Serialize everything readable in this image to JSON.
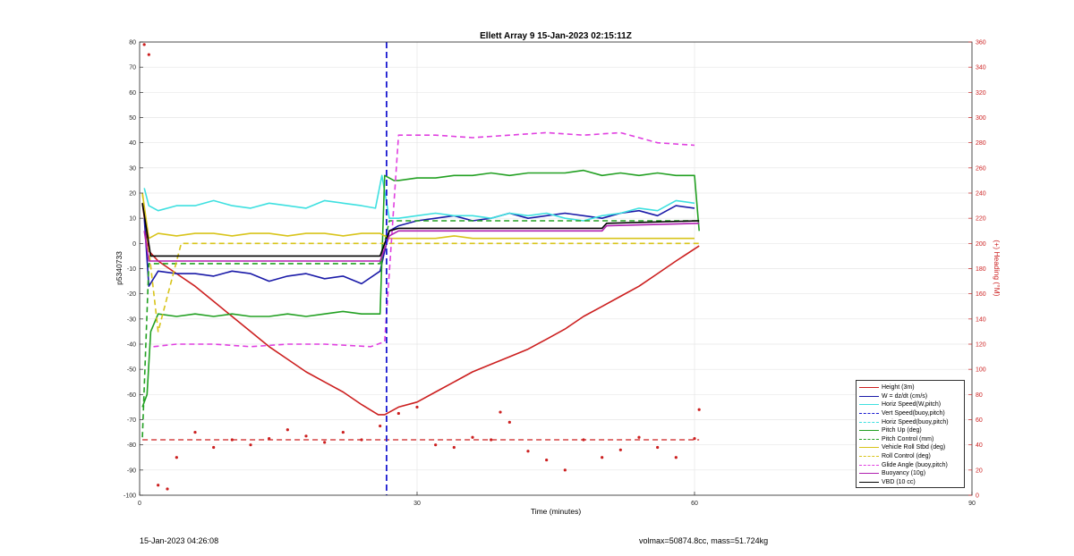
{
  "title": "Ellett Array 9 15-Jan-2023 02:15:11Z",
  "footer": {
    "left": "15-Jan-2023 04:26:08",
    "right": "volmax=50874.8cc, mass=51.724kg"
  },
  "colors": {
    "height": "#cc1f1f",
    "w": "#1a1aa8",
    "horiz": "#3ee0e0",
    "vert": "#1a1ad0",
    "pitch": "#22a022",
    "roll": "#d8c41a",
    "glide": "#e040e0",
    "buoyancy": "#b020b0",
    "vbd": "#000000"
  },
  "chart_data": {
    "type": "line",
    "title": "Ellett Array 9 15-Jan-2023 02:15:11Z",
    "xlabel": "Time (minutes)",
    "ylabel": "p5340733",
    "y2label": "(+) Heading (°M)",
    "xlim": [
      0,
      90
    ],
    "ylim": [
      -100,
      80
    ],
    "y2lim": [
      0,
      360
    ],
    "xticks": [
      "0",
      "30",
      "60",
      "90"
    ],
    "yticks": [
      "80",
      "70",
      "60",
      "50",
      "40",
      "30",
      "20",
      "10",
      "0",
      "-10",
      "-20",
      "-30",
      "-40",
      "-50",
      "-60",
      "-70",
      "-80",
      "-90",
      "-100"
    ],
    "y2ticks": [
      "360",
      "340",
      "320",
      "300",
      "280",
      "260",
      "240",
      "220",
      "200",
      "180",
      "160",
      "140",
      "120",
      "100",
      "80",
      "60",
      "40",
      "20",
      "0"
    ],
    "grid": true,
    "legend_position": "bottom-right",
    "vertical_line_x": 26.7,
    "series": [
      {
        "name": "Height (3m)",
        "style": "solid",
        "color": "#cc1f1f",
        "x": [
          0.3,
          1,
          2,
          4,
          6,
          8,
          10,
          12,
          14,
          16,
          18,
          20,
          22,
          24,
          25.8,
          26.5,
          28,
          30,
          32,
          34,
          36,
          38,
          40,
          42,
          44,
          46,
          48,
          50,
          52,
          54,
          56,
          58,
          60.5
        ],
        "y": [
          16,
          -3,
          -7,
          -12,
          -17,
          -23,
          -29,
          -35,
          -41,
          -46,
          -51,
          -55,
          -59,
          -64,
          -68,
          -68,
          -65,
          -63,
          -59,
          -55,
          -51,
          -48,
          -45,
          -42,
          -38,
          -34,
          -29,
          -25,
          -21,
          -17,
          -12,
          -7,
          -1
        ]
      },
      {
        "name": "W = dz/dt (cm/s)",
        "style": "solid",
        "color": "#1a1aa8",
        "x": [
          0.5,
          1,
          2,
          4,
          6,
          8,
          10,
          12,
          14,
          16,
          18,
          20,
          22,
          24,
          26,
          27,
          28,
          30,
          32,
          34,
          36,
          38,
          40,
          42,
          44,
          46,
          48,
          50,
          52,
          54,
          56,
          58,
          60
        ],
        "y": [
          10,
          -17,
          -11,
          -12,
          -12,
          -13,
          -11,
          -12,
          -15,
          -13,
          -12,
          -14,
          -13,
          -16,
          -11,
          5,
          7,
          9,
          10,
          11,
          9,
          10,
          12,
          10,
          11,
          12,
          11,
          10,
          12,
          13,
          11,
          15,
          14
        ]
      },
      {
        "name": "Horiz Speed(W,pitch)",
        "style": "solid",
        "color": "#3ee0e0",
        "x": [
          0.5,
          1,
          2,
          4,
          6,
          8,
          10,
          12,
          14,
          16,
          18,
          20,
          22,
          24,
          25.5,
          26.2,
          27,
          28,
          30,
          32,
          34,
          36,
          38,
          40,
          42,
          44,
          46,
          48,
          50,
          52,
          54,
          56,
          58,
          60
        ],
        "y": [
          22,
          15,
          13,
          15,
          15,
          17,
          15,
          14,
          16,
          15,
          14,
          17,
          16,
          15,
          14,
          27,
          10,
          10,
          11,
          12,
          11,
          11,
          10,
          12,
          11,
          12,
          10,
          9,
          11,
          12,
          14,
          13,
          17,
          16
        ]
      },
      {
        "name": "Vert Speed(buoy,pitch)",
        "style": "dashed",
        "color": "#1a1ad0",
        "x": [],
        "y": []
      },
      {
        "name": "Horiz Speed(buoy,pitch)",
        "style": "dashed",
        "color": "#3ee0e0",
        "x": [],
        "y": []
      },
      {
        "name": "Pitch Up (deg)",
        "style": "solid",
        "color": "#22a022",
        "x": [
          0.3,
          0.8,
          1.2,
          2,
          4,
          6,
          8,
          10,
          12,
          14,
          16,
          18,
          20,
          22,
          24,
          26,
          26.5,
          27.5,
          28,
          30,
          32,
          34,
          36,
          38,
          40,
          42,
          44,
          46,
          48,
          50,
          52,
          54,
          56,
          58,
          60,
          60.5
        ],
        "y": [
          -65,
          -60,
          -35,
          -28,
          -29,
          -28,
          -29,
          -28,
          -29,
          -29,
          -28,
          -29,
          -28,
          -27,
          -28,
          -28,
          27,
          25,
          25,
          26,
          26,
          27,
          27,
          28,
          27,
          28,
          28,
          28,
          29,
          27,
          28,
          27,
          28,
          27,
          27,
          5
        ]
      },
      {
        "name": "Pitch Control (mm)",
        "style": "dashed",
        "color": "#22a022",
        "x": [
          0.3,
          1,
          26,
          27,
          60.5
        ],
        "y": [
          -77,
          -8,
          -8,
          9,
          9
        ]
      },
      {
        "name": "Vehicle Roll Stbd (deg)",
        "style": "solid",
        "color": "#d8c41a",
        "x": [
          0.3,
          1,
          2,
          4,
          6,
          8,
          10,
          12,
          14,
          16,
          18,
          20,
          22,
          24,
          26,
          27,
          28,
          30,
          32,
          34,
          36,
          38,
          40,
          42,
          44,
          46,
          48,
          50,
          52,
          54,
          56,
          58,
          60
        ],
        "y": [
          20,
          2,
          4,
          3,
          4,
          4,
          3,
          4,
          4,
          3,
          4,
          4,
          3,
          4,
          4,
          2,
          2,
          2,
          2,
          3,
          2,
          2,
          2,
          2,
          2,
          2,
          2,
          2,
          2,
          2,
          2,
          2,
          2
        ]
      },
      {
        "name": "Roll Control (deg)",
        "style": "dashed",
        "color": "#d8c41a",
        "x": [
          0.3,
          2,
          4.5,
          20.5,
          21.5,
          26,
          27,
          60.5
        ],
        "y": [
          20,
          -35,
          0,
          0,
          0,
          0,
          0,
          0
        ]
      },
      {
        "name": "Glide Angle (buoy,pitch)",
        "style": "dashed",
        "color": "#e040e0",
        "x": [
          1.5,
          4,
          8,
          12,
          16,
          20,
          25,
          26.5,
          28,
          32,
          36,
          40,
          44,
          48,
          52,
          56,
          60
        ],
        "y": [
          -41,
          -40,
          -40,
          -41,
          -40,
          -40,
          -41,
          -39,
          43,
          43,
          42,
          43,
          44,
          43,
          44,
          40,
          39
        ]
      },
      {
        "name": "Buoyancy (10g)",
        "style": "solid",
        "color": "#b020b0",
        "x": [
          0.5,
          1,
          26,
          27,
          28,
          50,
          50.5,
          60.5
        ],
        "y": [
          5,
          -7,
          -7,
          3,
          5,
          5,
          7,
          8
        ]
      },
      {
        "name": "VBD (10 cc)",
        "style": "solid",
        "color": "#000000",
        "x": [
          0.3,
          1.2,
          26,
          27,
          28,
          50,
          50.5,
          60.5
        ],
        "y": [
          16,
          -5,
          -5,
          5,
          6,
          6,
          8,
          9
        ]
      }
    ],
    "heading": {
      "axis": "right",
      "color": "#cc1f1f",
      "mean_line": 44,
      "x": [
        0.5,
        1,
        2,
        3,
        4,
        6,
        8,
        10,
        12,
        14,
        16,
        18,
        20,
        22,
        24,
        26,
        28,
        30,
        32,
        34,
        36,
        38,
        39,
        40,
        42,
        44,
        46,
        48,
        50,
        52,
        54,
        56,
        58,
        60,
        60.5
      ],
      "y": [
        358,
        350,
        8,
        5,
        30,
        50,
        38,
        44,
        40,
        45,
        52,
        47,
        42,
        50,
        44,
        55,
        65,
        70,
        40,
        38,
        46,
        44,
        66,
        58,
        35,
        28,
        20,
        44,
        30,
        36,
        46,
        38,
        30,
        45,
        68
      ]
    }
  }
}
